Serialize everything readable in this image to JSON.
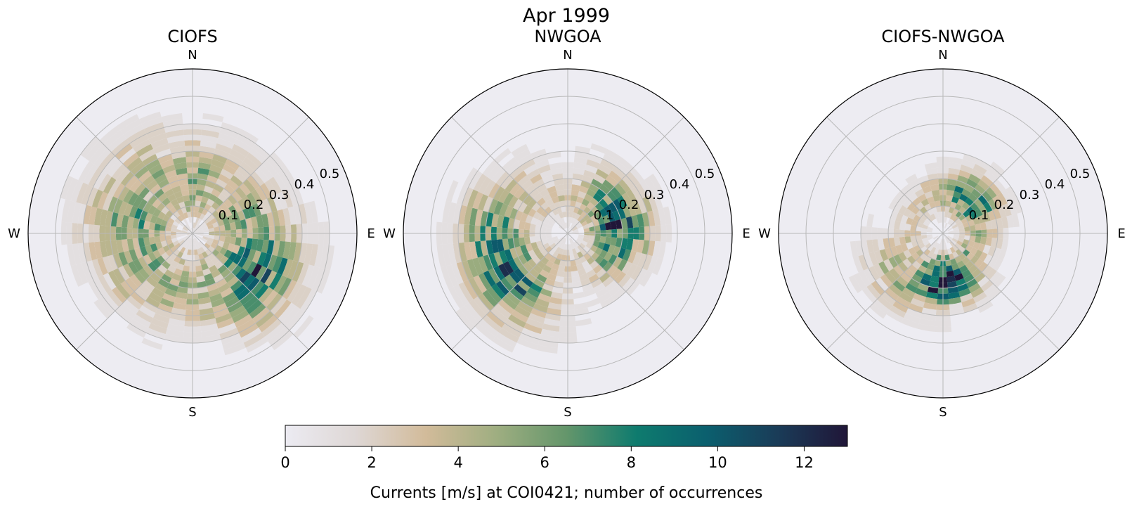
{
  "figure": {
    "suptitle": "Apr 1999"
  },
  "chart_data": [
    {
      "type": "polar-histogram",
      "title": "CIOFS",
      "compass": {
        "n": "N",
        "e": "E",
        "s": "S",
        "w": "W"
      },
      "radial_ticks": [
        0.1,
        0.2,
        0.3,
        0.4,
        0.5
      ],
      "radial_tick_labels": [
        "0.1",
        "0.2",
        "0.3",
        "0.4",
        "0.5"
      ],
      "rlim": [
        0,
        0.6
      ],
      "direction_sectors": 36,
      "speed_bin_edges": [
        0,
        0.02,
        0.04,
        0.06,
        0.08,
        0.1,
        0.12,
        0.14,
        0.16,
        0.18,
        0.2,
        0.22,
        0.24,
        0.26,
        0.28,
        0.3,
        0.32,
        0.34,
        0.36,
        0.38,
        0.4,
        0.42,
        0.44,
        0.46,
        0.48,
        0.5,
        0.52,
        0.54,
        0.56,
        0.58,
        0.6
      ],
      "sector_profiles": [
        {
          "center": 0,
          "peak": 0.18,
          "spread": 0.17,
          "max": 6
        },
        {
          "center": 40,
          "peak": 0.19,
          "spread": 0.16,
          "max": 4
        },
        {
          "center": 80,
          "peak": 0.2,
          "spread": 0.16,
          "max": 6
        },
        {
          "center": 120,
          "peak": 0.26,
          "spread": 0.16,
          "max": 10
        },
        {
          "center": 160,
          "peak": 0.2,
          "spread": 0.16,
          "max": 5
        },
        {
          "center": 200,
          "peak": 0.2,
          "spread": 0.16,
          "max": 5
        },
        {
          "center": 240,
          "peak": 0.2,
          "spread": 0.16,
          "max": 6
        },
        {
          "center": 280,
          "peak": 0.21,
          "spread": 0.18,
          "max": 7
        },
        {
          "center": 320,
          "peak": 0.22,
          "spread": 0.19,
          "max": 5
        }
      ],
      "seed": 7
    },
    {
      "type": "polar-histogram",
      "title": "NWGOA",
      "compass": {
        "n": "N",
        "e": "E",
        "s": "S",
        "w": "W"
      },
      "radial_ticks": [
        0.1,
        0.2,
        0.3,
        0.4,
        0.5
      ],
      "radial_tick_labels": [
        "0.1",
        "0.2",
        "0.3",
        "0.4",
        "0.5"
      ],
      "rlim": [
        0,
        0.6
      ],
      "direction_sectors": 36,
      "speed_bin_edges": [
        0,
        0.02,
        0.04,
        0.06,
        0.08,
        0.1,
        0.12,
        0.14,
        0.16,
        0.18,
        0.2,
        0.22,
        0.24,
        0.26,
        0.28,
        0.3,
        0.32,
        0.34,
        0.36,
        0.38,
        0.4,
        0.42,
        0.44,
        0.46,
        0.48,
        0.5,
        0.52,
        0.54,
        0.56,
        0.58,
        0.6
      ],
      "sector_profiles": [
        {
          "center": 0,
          "peak": 0.14,
          "spread": 0.1,
          "max": 3
        },
        {
          "center": 50,
          "peak": 0.17,
          "spread": 0.12,
          "max": 7
        },
        {
          "center": 80,
          "peak": 0.19,
          "spread": 0.11,
          "max": 12
        },
        {
          "center": 110,
          "peak": 0.17,
          "spread": 0.1,
          "max": 7
        },
        {
          "center": 160,
          "peak": 0.1,
          "spread": 0.07,
          "max": 3
        },
        {
          "center": 200,
          "peak": 0.12,
          "spread": 0.09,
          "max": 3
        },
        {
          "center": 235,
          "peak": 0.26,
          "spread": 0.14,
          "max": 10
        },
        {
          "center": 265,
          "peak": 0.27,
          "spread": 0.13,
          "max": 8
        },
        {
          "center": 300,
          "peak": 0.22,
          "spread": 0.12,
          "max": 4
        },
        {
          "center": 330,
          "peak": 0.15,
          "spread": 0.1,
          "max": 3
        }
      ],
      "seed": 21
    },
    {
      "type": "polar-histogram",
      "title": "CIOFS-NWGOA",
      "compass": {
        "n": "N",
        "e": "E",
        "s": "S",
        "w": "W"
      },
      "radial_ticks": [
        0.1,
        0.2,
        0.3,
        0.4,
        0.5
      ],
      "radial_tick_labels": [
        "0.1",
        "0.2",
        "0.3",
        "0.4",
        "0.5"
      ],
      "rlim": [
        0,
        0.6
      ],
      "direction_sectors": 36,
      "speed_bin_edges": [
        0,
        0.02,
        0.04,
        0.06,
        0.08,
        0.1,
        0.12,
        0.14,
        0.16,
        0.18,
        0.2,
        0.22,
        0.24,
        0.26,
        0.28,
        0.3,
        0.32,
        0.34,
        0.36,
        0.38,
        0.4,
        0.42,
        0.44,
        0.46,
        0.48,
        0.5,
        0.52,
        0.54,
        0.56,
        0.58,
        0.6
      ],
      "sector_profiles": [
        {
          "center": 0,
          "peak": 0.14,
          "spread": 0.08,
          "max": 5
        },
        {
          "center": 40,
          "peak": 0.16,
          "spread": 0.09,
          "max": 9
        },
        {
          "center": 80,
          "peak": 0.14,
          "spread": 0.08,
          "max": 5
        },
        {
          "center": 130,
          "peak": 0.12,
          "spread": 0.08,
          "max": 5
        },
        {
          "center": 180,
          "peak": 0.17,
          "spread": 0.09,
          "max": 13
        },
        {
          "center": 220,
          "peak": 0.2,
          "spread": 0.12,
          "max": 6
        },
        {
          "center": 270,
          "peak": 0.12,
          "spread": 0.07,
          "max": 3
        },
        {
          "center": 320,
          "peak": 0.13,
          "spread": 0.07,
          "max": 3
        }
      ],
      "seed": 42
    }
  ],
  "colorbar": {
    "label": "Currents [m/s] at COI0421; number of occurrences",
    "ticks": [
      0,
      2,
      4,
      6,
      8,
      10,
      12
    ],
    "tick_labels": [
      "0",
      "2",
      "4",
      "6",
      "8",
      "10",
      "12"
    ],
    "vmin": 0,
    "vmax": 13,
    "colormap_stops": [
      "#ecebf2",
      "#ded7d5",
      "#d2bb9a",
      "#9fae81",
      "#64966b",
      "#0e7b6e",
      "#0b5f6e",
      "#1a3c58",
      "#201638"
    ]
  },
  "colors": {
    "axes_background": "#edecf2",
    "grid": "#b8b8b8",
    "axes_edge": "#000000"
  }
}
